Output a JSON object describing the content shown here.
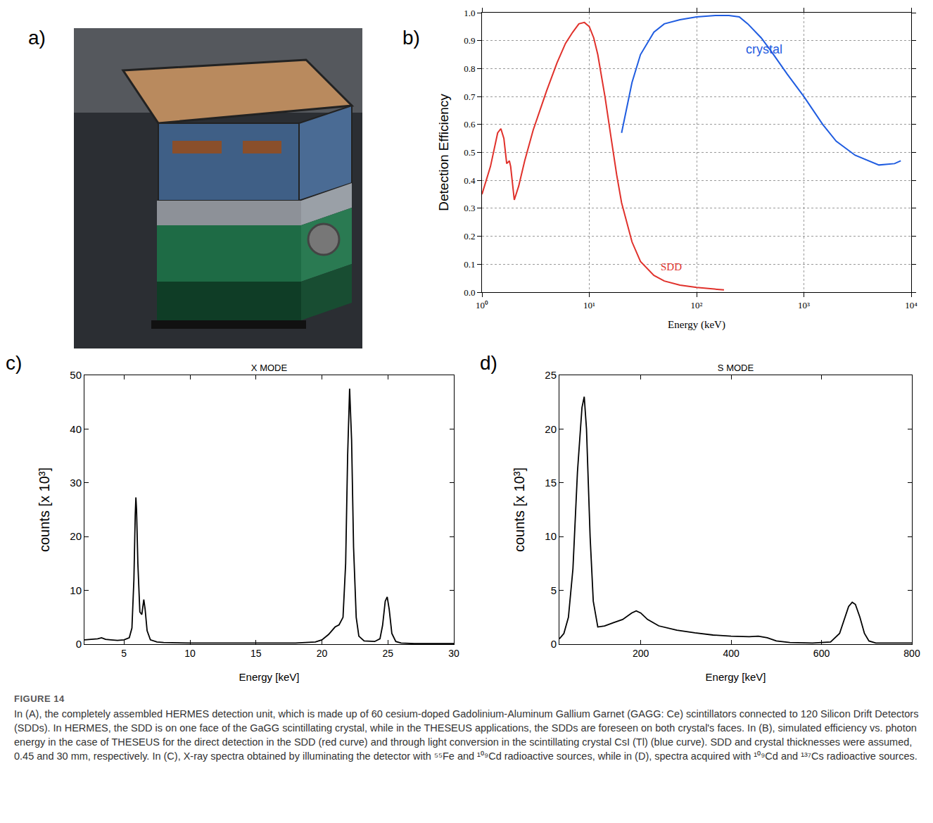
{
  "figure": {
    "label": "FIGURE 14",
    "caption": "In (A), the completely assembled HERMES detection unit, which is made up of 60 cesium-doped Gadolinium-Aluminum Gallium Garnet (GAGG: Ce) scintillators connected to 120 Silicon Drift Detectors (SDDs). In HERMES, the SDD is on one face of the GaGG scintillating crystal, while in the THESEUS applications, the SDDs are foreseen on both crystal's faces. In (B), simulated efficiency vs. photon energy in the case of THESEUS for the direct detection in the SDD (red curve) and through light conversion in the scintillating crystal CsI (Tl) (blue curve). SDD and crystal thicknesses were assumed, 0.45 and 30 mm, respectively. In (C), X-ray spectra obtained by illuminating the detector with ⁵⁵Fe and ¹⁰⁹Cd radioactive sources, while in (D), spectra acquired with ¹⁰⁹Cd and ¹³⁷Cs radioactive sources.",
    "photo_panel_label": "a)"
  },
  "chart_data": [
    {
      "panel_label": "b)",
      "type": "line",
      "log": "x",
      "grid": true,
      "x_label": "Energy (keV)",
      "y_label": "Detection Efficiency",
      "xlim": [
        1,
        10000
      ],
      "xticks": [
        {
          "value": 1,
          "label": "10⁰"
        },
        {
          "value": 10,
          "label": "10¹"
        },
        {
          "value": 100,
          "label": "10²"
        },
        {
          "value": 1000,
          "label": "10³"
        },
        {
          "value": 10000,
          "label": "10⁴"
        }
      ],
      "ylim": [
        0,
        1
      ],
      "yticks": [
        {
          "value": 0,
          "label": "0.0"
        },
        0.1,
        0.2,
        0.3,
        0.4,
        0.5,
        0.6,
        0.7,
        0.8,
        0.9,
        {
          "value": 1,
          "label": "1.0"
        }
      ],
      "series": [
        {
          "name": "SDD",
          "color": "#e0312b",
          "x": [
            1.0,
            1.2,
            1.4,
            1.5,
            1.6,
            1.7,
            1.8,
            1.85,
            2.0,
            2.2,
            2.5,
            3,
            4,
            5,
            6,
            7,
            8,
            9,
            10,
            11,
            12,
            14,
            16,
            18,
            20,
            25,
            30,
            40,
            50,
            70,
            100,
            150,
            180
          ],
          "values": [
            0.35,
            0.45,
            0.57,
            0.585,
            0.55,
            0.46,
            0.47,
            0.45,
            0.33,
            0.38,
            0.47,
            0.58,
            0.72,
            0.82,
            0.89,
            0.93,
            0.96,
            0.965,
            0.95,
            0.91,
            0.85,
            0.7,
            0.55,
            0.42,
            0.32,
            0.18,
            0.11,
            0.06,
            0.04,
            0.025,
            0.017,
            0.01,
            0.008
          ]
        },
        {
          "name": "crystal",
          "color": "#1f5ce0",
          "x": [
            20,
            22,
            25,
            30,
            40,
            50,
            70,
            100,
            150,
            200,
            250,
            300,
            400,
            500,
            700,
            1000,
            1500,
            2000,
            3000,
            5000,
            7000,
            8000
          ],
          "values": [
            0.57,
            0.65,
            0.75,
            0.85,
            0.93,
            0.96,
            0.975,
            0.985,
            0.99,
            0.99,
            0.985,
            0.96,
            0.91,
            0.86,
            0.78,
            0.7,
            0.6,
            0.54,
            0.49,
            0.455,
            0.46,
            0.47
          ]
        }
      ],
      "annotations": [
        {
          "text": "crystal",
          "x": 280,
          "y": 0.84,
          "color": "#1f5ce0"
        },
        {
          "text": "SDD",
          "x": 45,
          "y": 0.065,
          "color": "#e0312b"
        }
      ]
    },
    {
      "panel_label": "c)",
      "type": "line",
      "title": "X MODE",
      "grid": false,
      "x_label": "Energy [keV]",
      "y_label": "counts [x 10³]",
      "xlim": [
        2,
        30
      ],
      "xticks": [
        5,
        10,
        15,
        20,
        25,
        30
      ],
      "ylim": [
        0,
        50
      ],
      "yticks": [
        0,
        10,
        20,
        30,
        40,
        50
      ],
      "color": "#000000",
      "x": [
        2,
        2.5,
        3,
        3.3,
        3.6,
        4,
        4.5,
        5,
        5.4,
        5.6,
        5.75,
        5.85,
        5.9,
        5.95,
        6.05,
        6.2,
        6.35,
        6.5,
        6.6,
        6.75,
        7,
        7.5,
        8,
        10,
        12,
        15,
        18,
        19.5,
        20,
        20.5,
        21,
        21.3,
        21.6,
        21.8,
        21.95,
        22.1,
        22.25,
        22.4,
        22.6,
        22.8,
        23.2,
        24,
        24.4,
        24.6,
        24.8,
        24.95,
        25.1,
        25.3,
        25.6,
        26,
        27,
        30
      ],
      "values": [
        0.8,
        0.9,
        1.0,
        1.2,
        0.9,
        0.8,
        0.7,
        0.8,
        1.2,
        3,
        12,
        24,
        27.3,
        25,
        15,
        6,
        5.5,
        8.3,
        6.5,
        2.5,
        0.8,
        0.4,
        0.3,
        0.2,
        0.2,
        0.2,
        0.2,
        0.4,
        0.8,
        1.8,
        3.2,
        3.6,
        5,
        15,
        35,
        47.5,
        38,
        18,
        5,
        1.5,
        0.6,
        0.5,
        1,
        3.5,
        8,
        8.8,
        6.5,
        2,
        0.5,
        0.2,
        0.1,
        0.1
      ]
    },
    {
      "panel_label": "d)",
      "type": "line",
      "title": "S MODE",
      "grid": false,
      "x_label": "Energy [keV]",
      "y_label": "counts [x 10³]",
      "xlim": [
        20,
        800
      ],
      "xticks": [
        200,
        400,
        600,
        800
      ],
      "ylim": [
        0,
        25
      ],
      "yticks": [
        0,
        5,
        10,
        15,
        20,
        25
      ],
      "color": "#000000",
      "x": [
        20,
        30,
        40,
        50,
        60,
        70,
        75,
        80,
        88,
        95,
        105,
        120,
        140,
        160,
        180,
        190,
        200,
        215,
        240,
        280,
        320,
        360,
        400,
        440,
        460,
        480,
        500,
        530,
        580,
        620,
        640,
        650,
        660,
        668,
        675,
        685,
        695,
        705,
        720,
        800
      ],
      "values": [
        0.5,
        1,
        2.5,
        7,
        16,
        22,
        23,
        20,
        10,
        4,
        1.6,
        1.7,
        2,
        2.3,
        2.9,
        3.1,
        2.9,
        2.3,
        1.7,
        1.3,
        1.05,
        0.85,
        0.75,
        0.7,
        0.75,
        0.6,
        0.3,
        0.15,
        0.1,
        0.2,
        1,
        2.2,
        3.5,
        3.9,
        3.7,
        2.5,
        1,
        0.3,
        0.1,
        0.1
      ]
    }
  ]
}
